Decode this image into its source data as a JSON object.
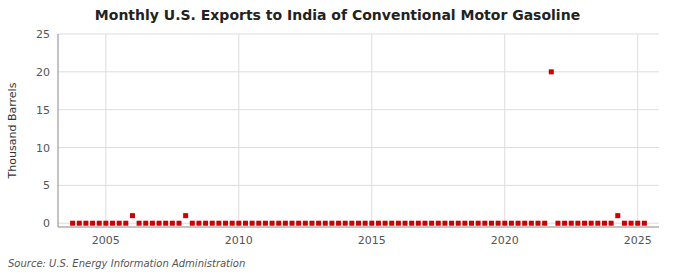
{
  "chart_data": {
    "type": "scatter",
    "title": "Monthly U.S. Exports to India of Conventional Motor Gasoline",
    "ylabel": "Thousand Barrels",
    "annotations": [
      "Source: U.S. Energy Information Administration"
    ],
    "color": "#cc0000",
    "marker": "square",
    "grid": true,
    "xlim": [
      2003.2,
      2025.8
    ],
    "xticks": [
      2005,
      2010,
      2015,
      2020,
      2025
    ],
    "ylim": [
      -0.5,
      25
    ],
    "yticks": [
      0,
      5,
      10,
      15,
      20,
      25
    ],
    "x": [
      2003.75,
      2004.0,
      2004.25,
      2004.5,
      2004.75,
      2005.0,
      2005.25,
      2005.5,
      2005.75,
      2006.0,
      2006.25,
      2006.5,
      2006.75,
      2007.0,
      2007.25,
      2007.5,
      2007.75,
      2008.0,
      2008.25,
      2008.5,
      2008.75,
      2009.0,
      2009.25,
      2009.5,
      2009.75,
      2010.0,
      2010.25,
      2010.5,
      2010.75,
      2011.0,
      2011.25,
      2011.5,
      2011.75,
      2012.0,
      2012.25,
      2012.5,
      2012.75,
      2013.0,
      2013.25,
      2013.5,
      2013.75,
      2014.0,
      2014.25,
      2014.5,
      2014.75,
      2015.0,
      2015.25,
      2015.5,
      2015.75,
      2016.0,
      2016.25,
      2016.5,
      2016.75,
      2017.0,
      2017.25,
      2017.5,
      2017.75,
      2018.0,
      2018.25,
      2018.5,
      2018.75,
      2019.0,
      2019.25,
      2019.5,
      2019.75,
      2020.0,
      2020.25,
      2020.5,
      2020.75,
      2021.0,
      2021.25,
      2021.5,
      2021.75,
      2022.0,
      2022.25,
      2022.5,
      2022.75,
      2023.0,
      2023.25,
      2023.5,
      2023.75,
      2024.0,
      2024.25,
      2024.5,
      2024.75,
      2025.0,
      2025.25
    ],
    "values": [
      0.0,
      0.0,
      0.0,
      0.0,
      0.0,
      0.0,
      0.0,
      0.0,
      0.0,
      1.0,
      0.0,
      0.0,
      0.0,
      0.0,
      0.0,
      0.0,
      0.0,
      1.0,
      0.0,
      0.0,
      0.0,
      0.0,
      0.0,
      0.0,
      0.0,
      0.0,
      0.0,
      0.0,
      0.0,
      0.0,
      0.0,
      0.0,
      0.0,
      0.0,
      0.0,
      0.0,
      0.0,
      0.0,
      0.0,
      0.0,
      0.0,
      0.0,
      0.0,
      0.0,
      0.0,
      0.0,
      0.0,
      0.0,
      0.0,
      0.0,
      0.0,
      0.0,
      0.0,
      0.0,
      0.0,
      0.0,
      0.0,
      0.0,
      0.0,
      0.0,
      0.0,
      0.0,
      0.0,
      0.0,
      0.0,
      0.0,
      0.0,
      0.0,
      0.0,
      0.0,
      0.0,
      0.0,
      20.0,
      0.0,
      0.0,
      0.0,
      0.0,
      0.0,
      0.0,
      0.0,
      0.0,
      0.0,
      1.0,
      0.0,
      0.0,
      0.0,
      0.0
    ]
  }
}
